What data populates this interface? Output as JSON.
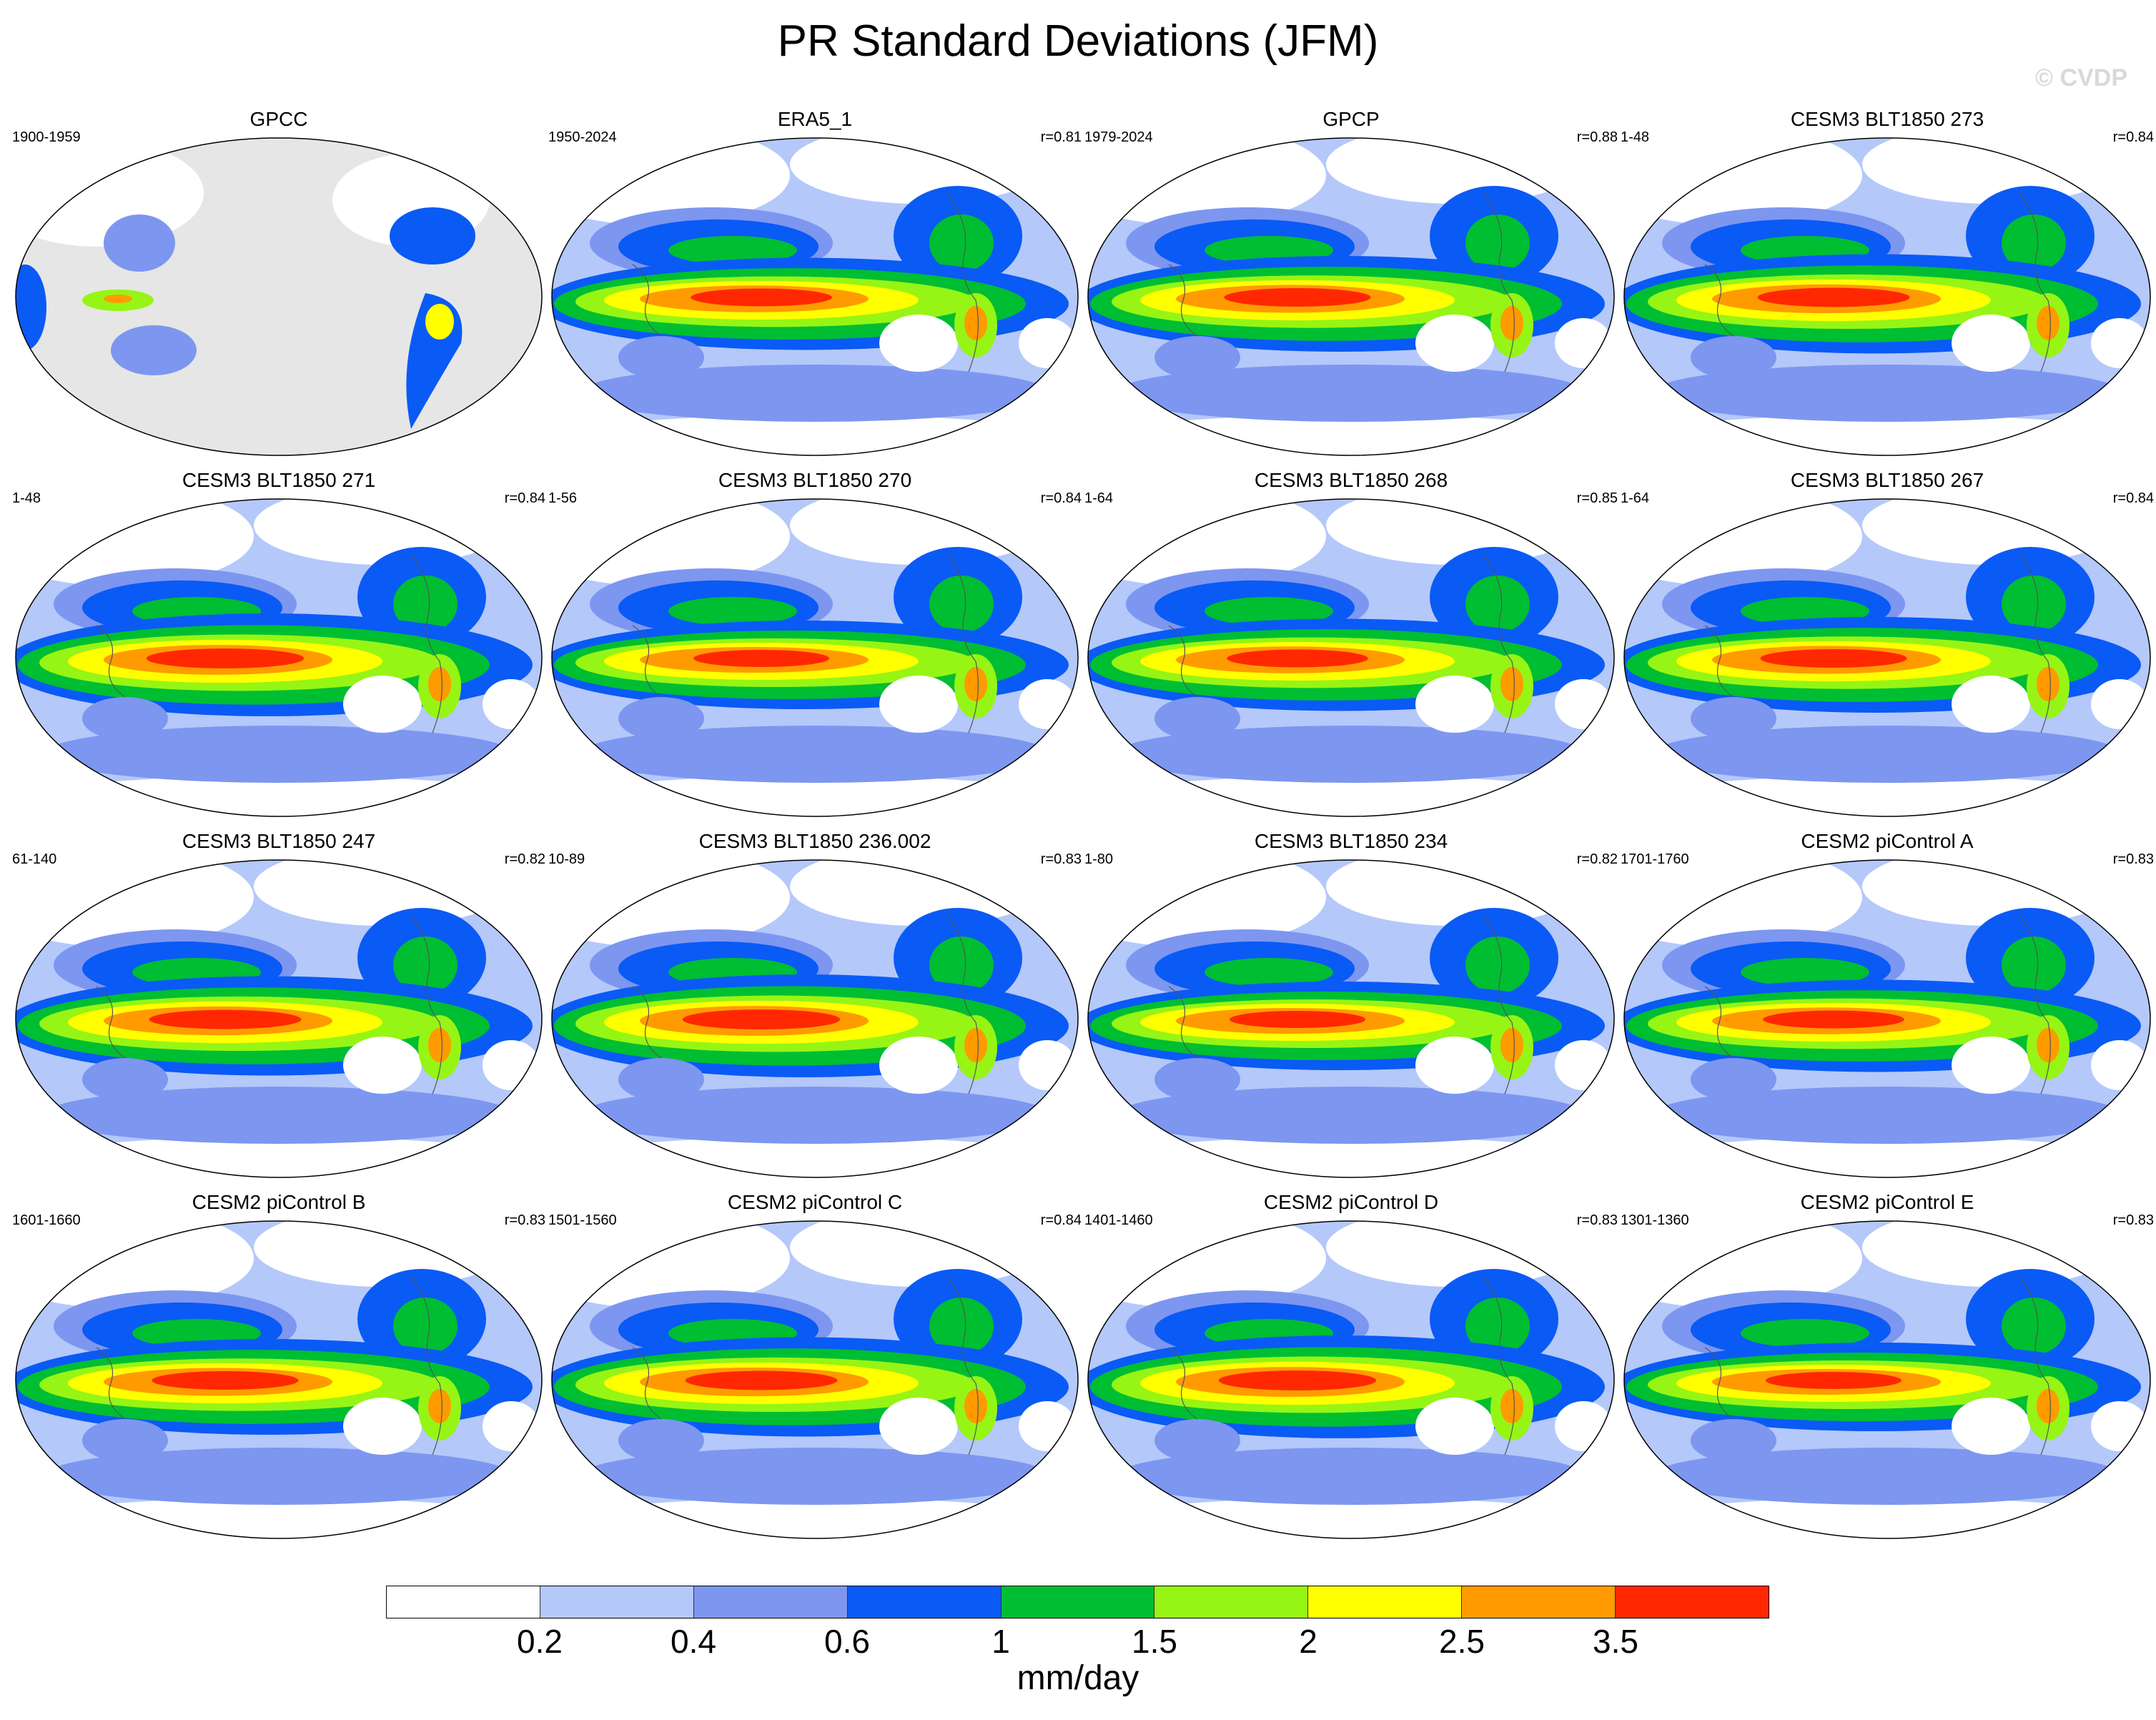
{
  "title": "PR Standard Deviations (JFM)",
  "watermark": "© CVDP",
  "panels": [
    {
      "title": "GPCC",
      "years": "1900-1959",
      "corr": "",
      "style": "obs-land"
    },
    {
      "title": "ERA5_1",
      "years": "1950-2024",
      "corr": "r=0.81",
      "style": "obs"
    },
    {
      "title": "GPCP",
      "years": "1979-2024",
      "corr": "r=0.88",
      "style": "obs"
    },
    {
      "title": "CESM3 BLT1850 273",
      "years": "1-48",
      "corr": "r=0.84",
      "style": "model"
    },
    {
      "title": "CESM3 BLT1850 271",
      "years": "1-48",
      "corr": "r=0.84",
      "style": "model"
    },
    {
      "title": "CESM3 BLT1850 270",
      "years": "1-56",
      "corr": "r=0.84",
      "style": "model"
    },
    {
      "title": "CESM3 BLT1850 268",
      "years": "1-64",
      "corr": "r=0.85",
      "style": "model"
    },
    {
      "title": "CESM3 BLT1850 267",
      "years": "1-64",
      "corr": "r=0.84",
      "style": "model"
    },
    {
      "title": "CESM3 BLT1850 247",
      "years": "61-140",
      "corr": "r=0.82",
      "style": "model"
    },
    {
      "title": "CESM3 BLT1850 236.002",
      "years": "10-89",
      "corr": "r=0.83",
      "style": "model"
    },
    {
      "title": "CESM3 BLT1850 234",
      "years": "1-80",
      "corr": "r=0.82",
      "style": "model"
    },
    {
      "title": "CESM2 piControl A",
      "years": "1701-1760",
      "corr": "r=0.83",
      "style": "model"
    },
    {
      "title": "CESM2 piControl B",
      "years": "1601-1660",
      "corr": "r=0.83",
      "style": "model"
    },
    {
      "title": "CESM2 piControl C",
      "years": "1501-1560",
      "corr": "r=0.84",
      "style": "model"
    },
    {
      "title": "CESM2 piControl D",
      "years": "1401-1460",
      "corr": "r=0.83",
      "style": "model"
    },
    {
      "title": "CESM2 piControl E",
      "years": "1301-1360",
      "corr": "r=0.83",
      "style": "model"
    }
  ],
  "colorbar": {
    "colors": [
      "#ffffff",
      "#b4c8fa",
      "#7d96f0",
      "#0a5af5",
      "#00be32",
      "#96f514",
      "#ffff00",
      "#ff9b00",
      "#ff2800"
    ],
    "labels": [
      "0.2",
      "0.4",
      "0.6",
      "1",
      "1.5",
      "2",
      "2.5",
      "3.5"
    ],
    "units": "mm/day"
  }
}
